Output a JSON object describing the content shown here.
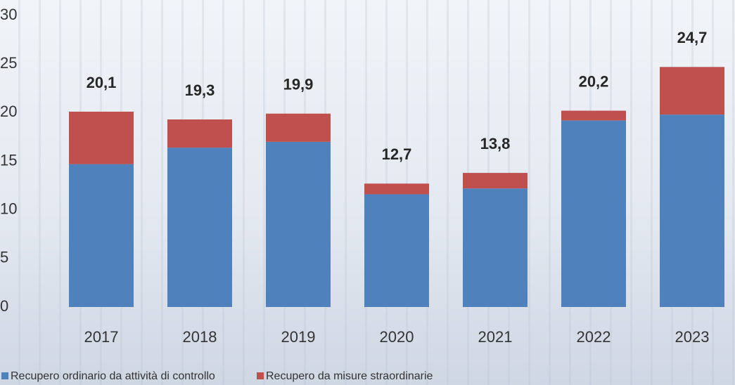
{
  "chart_data": {
    "type": "stacked_bar",
    "categories": [
      "2017",
      "2018",
      "2019",
      "2020",
      "2021",
      "2022",
      "2023"
    ],
    "series": [
      {
        "name": "Recupero ordinario da attività di controllo",
        "color": "#4f81bd",
        "values": [
          14.7,
          16.4,
          17.0,
          11.6,
          12.2,
          19.2,
          19.8
        ]
      },
      {
        "name": "Recupero da misure straordinarie",
        "color": "#c0504d",
        "values": [
          5.4,
          2.9,
          2.9,
          1.1,
          1.6,
          1.0,
          4.9
        ]
      }
    ],
    "totals": [
      20.1,
      19.3,
      19.9,
      12.7,
      13.8,
      20.2,
      24.7
    ],
    "total_labels": [
      "20,1",
      "19,3",
      "19,9",
      "12,7",
      "13,8",
      "20,2",
      "24,7"
    ],
    "ylim": [
      0,
      30
    ],
    "yticks": [
      0,
      5,
      10,
      15,
      20,
      25,
      30
    ],
    "grid": false,
    "legend": "bottom"
  }
}
